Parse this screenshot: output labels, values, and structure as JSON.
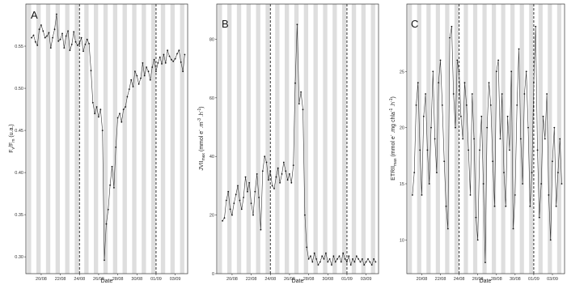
{
  "figure": {
    "panels": [
      {
        "letter": "A",
        "ylabel_main": "F",
        "ylabel_sub1": "v",
        "ylabel_mid": "/F",
        "ylabel_sub2": "m",
        "ylabel_tail": " (u.a.)",
        "xlabel": "Date"
      },
      {
        "letter": "B",
        "ylabel_main": "JVII",
        "ylabel_sub1": "max",
        "ylabel_mid": " (mmol e",
        "ylabel_sup1": "-",
        "ylabel_tail": " .m",
        "ylabel_sup2": "-3",
        "ylabel_tail2": " .h",
        "ylabel_sup3": "-1",
        "ylabel_end": ")",
        "xlabel": "Date"
      },
      {
        "letter": "C",
        "ylabel_main": "ETRII",
        "ylabel_sub1": "max",
        "ylabel_mid": " (mmol e",
        "ylabel_sup1": "-",
        "ylabel_tail": " .mg chla",
        "ylabel_sup2": "-1",
        "ylabel_tail2": " .h",
        "ylabel_sup3": "-1",
        "ylabel_end": ")",
        "xlabel": "Date"
      }
    ],
    "date_ticks": [
      "20/08",
      "22/08",
      "24/08",
      "26/08",
      "28/08",
      "30/08",
      "01/09",
      "03/09"
    ]
  },
  "chart_data": [
    {
      "type": "line",
      "title": "",
      "xlabel": "Date",
      "ylabel": "Fv/Fm (u.a.)",
      "x_range": [
        "19/08",
        "05/09"
      ],
      "ylim": [
        0.28,
        0.6
      ],
      "yticks": [
        0.3,
        0.35,
        0.4,
        0.45,
        0.5,
        0.55
      ],
      "ytick_labels": [
        "0.30",
        "0.35",
        "0.40",
        "0.45",
        "0.50",
        "0.55"
      ],
      "dashed_vlines": [
        "24/08",
        "01/09"
      ],
      "night_shading": true,
      "grid": false,
      "series": [
        {
          "x_day": [
            0,
            0.2,
            0.4,
            0.6,
            0.8,
            1.0,
            1.2,
            1.4,
            1.6,
            1.8,
            2.0,
            2.2,
            2.4,
            2.6,
            2.8,
            3.0,
            3.2,
            3.4,
            3.6,
            3.8,
            4.0,
            4.2,
            4.4,
            4.6,
            4.8,
            5.0,
            5.2,
            5.4,
            5.6,
            5.8,
            6.0,
            6.2,
            6.4,
            6.6,
            6.8,
            7.0,
            7.2,
            7.4,
            7.6,
            7.8,
            8.0,
            8.2,
            8.4,
            8.6,
            8.8,
            9.0,
            9.2,
            9.4,
            9.6,
            9.8,
            10.0,
            10.2,
            10.4,
            10.6,
            10.8,
            11.0,
            11.2,
            11.4,
            11.6,
            11.8,
            12.0,
            12.2,
            12.4,
            12.6,
            12.8,
            13.0,
            13.2,
            13.4,
            13.6,
            13.8,
            14.0,
            14.2,
            14.4,
            14.6,
            14.8,
            15.0,
            15.2,
            15.4,
            15.6,
            15.8,
            16.0
          ],
          "values": [
            0.56,
            0.563,
            0.555,
            0.551,
            0.57,
            0.575,
            0.568,
            0.56,
            0.562,
            0.566,
            0.548,
            0.56,
            0.57,
            0.588,
            0.556,
            0.558,
            0.565,
            0.548,
            0.562,
            0.568,
            0.545,
            0.552,
            0.567,
            0.555,
            0.551,
            0.553,
            0.56,
            0.544,
            0.552,
            0.558,
            0.553,
            0.521,
            0.483,
            0.47,
            0.478,
            0.466,
            0.475,
            0.45,
            0.296,
            0.339,
            0.356,
            0.385,
            0.407,
            0.382,
            0.43,
            0.465,
            0.47,
            0.46,
            0.475,
            0.478,
            0.49,
            0.499,
            0.51,
            0.502,
            0.52,
            0.515,
            0.505,
            0.512,
            0.53,
            0.515,
            0.525,
            0.52,
            0.51,
            0.525,
            0.534,
            0.52,
            0.53,
            0.537,
            0.529,
            0.54,
            0.53,
            0.545,
            0.538,
            0.534,
            0.532,
            0.535,
            0.541,
            0.545,
            0.531,
            0.52,
            0.54
          ]
        }
      ]
    },
    {
      "type": "line",
      "title": "",
      "xlabel": "Date",
      "ylabel": "JVIImax (mmol e- .m-3 .h-1)",
      "x_range": [
        "19/08",
        "05/09"
      ],
      "ylim": [
        0,
        92
      ],
      "yticks": [
        0,
        20,
        40,
        60,
        80
      ],
      "ytick_labels": [
        "0",
        "20",
        "40",
        "60",
        "80"
      ],
      "dashed_vlines": [
        "24/08",
        "01/09"
      ],
      "night_shading": true,
      "grid": false,
      "series": [
        {
          "x_day": [
            0,
            0.2,
            0.4,
            0.6,
            0.8,
            1.0,
            1.2,
            1.4,
            1.6,
            1.8,
            2.0,
            2.2,
            2.4,
            2.6,
            2.8,
            3.0,
            3.2,
            3.4,
            3.6,
            3.8,
            4.0,
            4.2,
            4.4,
            4.6,
            4.8,
            5.0,
            5.2,
            5.4,
            5.6,
            5.8,
            6.0,
            6.2,
            6.4,
            6.6,
            6.8,
            7.0,
            7.2,
            7.4,
            7.6,
            7.8,
            8.0,
            8.2,
            8.4,
            8.6,
            8.8,
            9.0,
            9.2,
            9.4,
            9.6,
            9.8,
            10.0,
            10.2,
            10.4,
            10.6,
            10.8,
            11.0,
            11.2,
            11.4,
            11.6,
            11.8,
            12.0,
            12.2,
            12.4,
            12.6,
            12.8,
            13.0,
            13.2,
            13.4,
            13.6,
            13.8,
            14.0,
            14.2,
            14.4,
            14.6,
            14.8,
            15.0,
            15.2,
            15.4,
            15.6,
            15.8,
            16.0
          ],
          "values": [
            18,
            19,
            25,
            28,
            22,
            20,
            24,
            27,
            30,
            25,
            22,
            26,
            33,
            28,
            31,
            24,
            20,
            28,
            34,
            26,
            15,
            35,
            40,
            38,
            32,
            35,
            30,
            29,
            33,
            36,
            31,
            34,
            38,
            35,
            32,
            34,
            31,
            37,
            65,
            85,
            58,
            62,
            56,
            20,
            9,
            5,
            6,
            4,
            7,
            5,
            3,
            4,
            6,
            5,
            7,
            4,
            5,
            3,
            6,
            4,
            5,
            6,
            4,
            7,
            5,
            4,
            6,
            3,
            5,
            4,
            6,
            5,
            4,
            5,
            3,
            4,
            5,
            4,
            3,
            5,
            4
          ]
        }
      ]
    },
    {
      "type": "line",
      "title": "",
      "xlabel": "Date",
      "ylabel": "ETRIImax (mmol e- .mg chla-1 .h-1)",
      "x_range": [
        "19/08",
        "05/09"
      ],
      "ylim": [
        7,
        31
      ],
      "yticks": [
        10,
        15,
        20,
        25
      ],
      "ytick_labels": [
        "10",
        "15",
        "20",
        "25"
      ],
      "dashed_vlines": [
        "24/08",
        "01/09"
      ],
      "night_shading": true,
      "grid": false,
      "series": [
        {
          "x_day": [
            0,
            0.2,
            0.4,
            0.6,
            0.8,
            1.0,
            1.2,
            1.4,
            1.6,
            1.8,
            2.0,
            2.2,
            2.4,
            2.6,
            2.8,
            3.0,
            3.2,
            3.4,
            3.6,
            3.8,
            4.0,
            4.2,
            4.4,
            4.6,
            4.8,
            5.0,
            5.2,
            5.4,
            5.6,
            5.8,
            6.0,
            6.2,
            6.4,
            6.6,
            6.8,
            7.0,
            7.2,
            7.4,
            7.6,
            7.8,
            8.0,
            8.2,
            8.4,
            8.6,
            8.8,
            9.0,
            9.2,
            9.4,
            9.6,
            9.8,
            10.0,
            10.2,
            10.4,
            10.6,
            10.8,
            11.0,
            11.2,
            11.4,
            11.6,
            11.8,
            12.0,
            12.2,
            12.4,
            12.6,
            12.8,
            13.0,
            13.2,
            13.4,
            13.6,
            13.8,
            14.0,
            14.2,
            14.4,
            14.6,
            14.8,
            15.0,
            15.2,
            15.4,
            15.6,
            15.8,
            16.0
          ],
          "values": [
            14,
            16,
            22,
            24,
            18,
            14,
            21,
            23,
            18,
            15,
            20,
            25,
            19,
            16,
            24,
            26,
            22,
            17,
            13,
            11,
            28,
            29,
            23,
            20,
            26,
            25,
            21,
            19,
            24,
            22,
            18,
            14,
            23,
            19,
            12,
            10,
            18,
            21,
            15,
            8,
            20,
            24,
            22,
            17,
            13,
            25,
            26,
            19,
            23,
            16,
            13,
            21,
            18,
            25,
            11,
            14,
            22,
            27,
            19,
            15,
            23,
            25,
            20,
            13,
            16,
            24,
            29,
            18,
            12,
            15,
            21,
            19,
            23,
            14,
            10,
            17,
            20,
            13,
            16,
            19,
            15
          ]
        }
      ]
    }
  ]
}
